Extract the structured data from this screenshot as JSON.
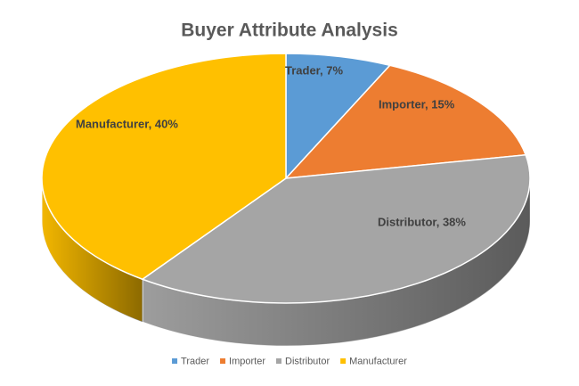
{
  "chart_data": {
    "type": "pie",
    "title": "Buyer Attribute Analysis",
    "categories": [
      "Trader",
      "Importer",
      "Distributor",
      "Manufacturer"
    ],
    "values": [
      7,
      15,
      38,
      40
    ],
    "value_labels": [
      "Trader, 7%",
      "Importer, 15%",
      "Distributor, 38%",
      "Manufacturer, 40%"
    ],
    "colors": [
      "#5b9bd5",
      "#ed7d31",
      "#a5a5a5",
      "#ffc000"
    ],
    "legend": "bottom"
  }
}
